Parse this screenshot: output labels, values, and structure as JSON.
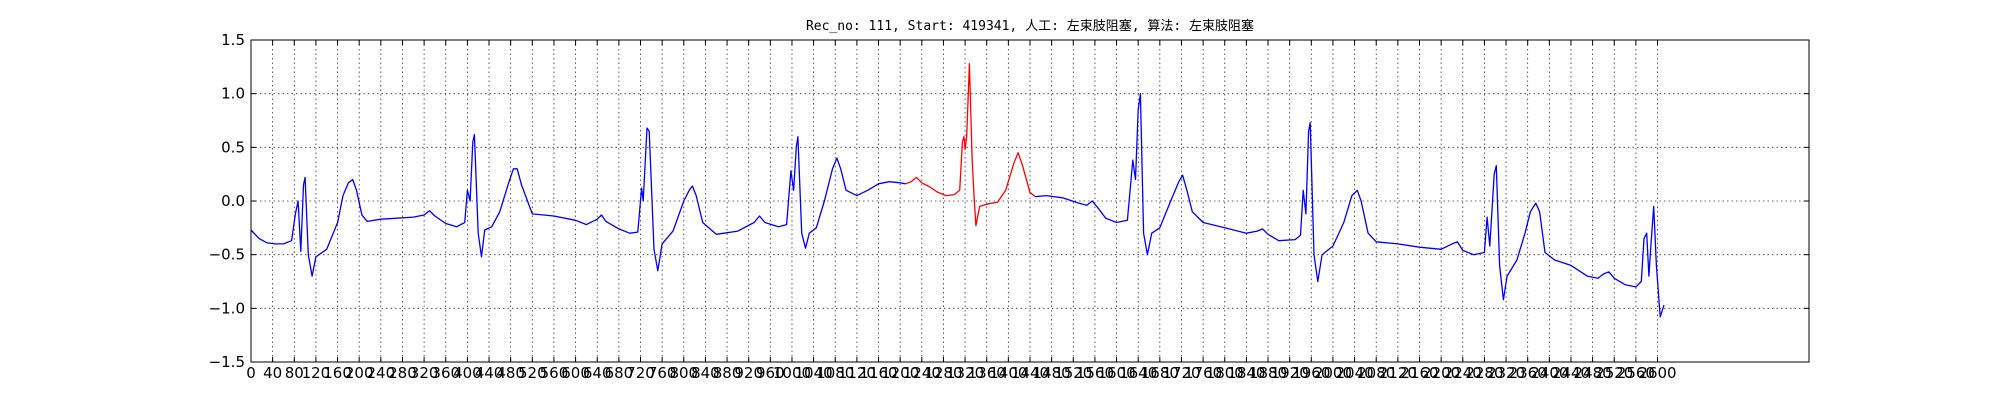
{
  "chart_data": {
    "type": "line",
    "title": "Rec_no: 111, Start: 419341, 人工: 左束肢阻塞, 算法: 左束肢阻塞",
    "xlabel": "",
    "ylabel": "",
    "xlim": [
      0,
      2880
    ],
    "ylim": [
      -1.5,
      1.5
    ],
    "grid": true,
    "yticks": [
      -1.5,
      -1.0,
      -0.5,
      0.0,
      0.5,
      1.0,
      1.5
    ],
    "ytick_labels": [
      "−1.5",
      "−1.0",
      "−0.5",
      "0.0",
      "0.5",
      "1.0",
      "1.5"
    ],
    "xticks": [
      0,
      40,
      80,
      120,
      160,
      200,
      240,
      280,
      320,
      360,
      400,
      440,
      480,
      520,
      560,
      600,
      640,
      680,
      720,
      760,
      800,
      840,
      880,
      920,
      960,
      1000,
      1040,
      1080,
      1120,
      1160,
      1200,
      1240,
      1280,
      1320,
      1360,
      1400,
      1440,
      1480,
      1520,
      1560,
      1600,
      1640,
      1680,
      1720,
      1760,
      1800,
      1840,
      1880,
      1920,
      1960,
      2000,
      2040,
      2080,
      2120,
      2160,
      2200,
      2240,
      2280,
      2320,
      2360,
      2400,
      2440,
      2480,
      2520,
      2560,
      2600
    ],
    "series": [
      {
        "color": "#0000ff",
        "segment": "before",
        "points": [
          [
            0,
            -0.27
          ],
          [
            15,
            -0.35
          ],
          [
            30,
            -0.39
          ],
          [
            45,
            -0.4
          ],
          [
            60,
            -0.4
          ],
          [
            75,
            -0.37
          ],
          [
            82,
            -0.12
          ],
          [
            87,
            0.0
          ],
          [
            92,
            -0.47
          ],
          [
            97,
            0.15
          ],
          [
            100,
            0.22
          ],
          [
            106,
            -0.5
          ],
          [
            113,
            -0.7
          ],
          [
            120,
            -0.52
          ],
          [
            140,
            -0.45
          ],
          [
            160,
            -0.2
          ],
          [
            170,
            0.05
          ],
          [
            180,
            0.17
          ],
          [
            188,
            0.2
          ],
          [
            195,
            0.1
          ],
          [
            205,
            -0.13
          ],
          [
            215,
            -0.19
          ],
          [
            240,
            -0.17
          ],
          [
            270,
            -0.16
          ],
          [
            300,
            -0.15
          ],
          [
            320,
            -0.13
          ],
          [
            330,
            -0.09
          ],
          [
            340,
            -0.14
          ],
          [
            360,
            -0.21
          ],
          [
            380,
            -0.24
          ],
          [
            395,
            -0.2
          ],
          [
            400,
            0.1
          ],
          [
            405,
            0.0
          ],
          [
            410,
            0.55
          ],
          [
            413,
            0.62
          ],
          [
            420,
            -0.3
          ],
          [
            426,
            -0.52
          ],
          [
            432,
            -0.27
          ],
          [
            445,
            -0.24
          ],
          [
            460,
            -0.1
          ],
          [
            475,
            0.15
          ],
          [
            485,
            0.3
          ],
          [
            492,
            0.3
          ],
          [
            500,
            0.15
          ],
          [
            520,
            -0.12
          ],
          [
            560,
            -0.14
          ],
          [
            600,
            -0.18
          ],
          [
            620,
            -0.22
          ],
          [
            640,
            -0.17
          ],
          [
            648,
            -0.13
          ],
          [
            656,
            -0.19
          ],
          [
            680,
            -0.26
          ],
          [
            700,
            -0.3
          ],
          [
            715,
            -0.29
          ],
          [
            722,
            0.12
          ],
          [
            725,
            0.0
          ],
          [
            732,
            0.68
          ],
          [
            736,
            0.65
          ],
          [
            745,
            -0.45
          ],
          [
            752,
            -0.65
          ],
          [
            760,
            -0.4
          ],
          [
            780,
            -0.28
          ],
          [
            800,
            0.0
          ],
          [
            810,
            0.1
          ],
          [
            816,
            0.14
          ],
          [
            823,
            0.05
          ],
          [
            835,
            -0.2
          ],
          [
            860,
            -0.31
          ],
          [
            900,
            -0.28
          ],
          [
            930,
            -0.2
          ],
          [
            940,
            -0.14
          ],
          [
            950,
            -0.2
          ],
          [
            975,
            -0.24
          ],
          [
            990,
            -0.22
          ],
          [
            998,
            0.28
          ],
          [
            1003,
            0.1
          ],
          [
            1008,
            0.5
          ],
          [
            1011,
            0.6
          ],
          [
            1018,
            -0.3
          ],
          [
            1025,
            -0.44
          ],
          [
            1032,
            -0.3
          ],
          [
            1045,
            -0.25
          ],
          [
            1060,
            0.0
          ],
          [
            1075,
            0.3
          ],
          [
            1083,
            0.4
          ],
          [
            1090,
            0.3
          ],
          [
            1100,
            0.1
          ],
          [
            1120,
            0.05
          ],
          [
            1140,
            0.1
          ],
          [
            1160,
            0.16
          ],
          [
            1180,
            0.18
          ],
          [
            1200,
            0.17
          ],
          [
            1210,
            0.16
          ]
        ]
      },
      {
        "color": "#ff0000",
        "segment": "highlighted",
        "points": [
          [
            1210,
            0.16
          ],
          [
            1220,
            0.18
          ],
          [
            1230,
            0.22
          ],
          [
            1240,
            0.17
          ],
          [
            1255,
            0.13
          ],
          [
            1270,
            0.08
          ],
          [
            1285,
            0.05
          ],
          [
            1300,
            0.06
          ],
          [
            1310,
            0.1
          ],
          [
            1315,
            0.55
          ],
          [
            1318,
            0.6
          ],
          [
            1320,
            0.48
          ],
          [
            1323,
            0.6
          ],
          [
            1328,
            1.28
          ],
          [
            1333,
            0.4
          ],
          [
            1337,
            0.0
          ],
          [
            1340,
            -0.23
          ],
          [
            1343,
            -0.15
          ],
          [
            1347,
            -0.05
          ],
          [
            1360,
            -0.03
          ],
          [
            1380,
            -0.01
          ],
          [
            1395,
            0.1
          ],
          [
            1410,
            0.35
          ],
          [
            1418,
            0.45
          ],
          [
            1425,
            0.35
          ],
          [
            1440,
            0.08
          ],
          [
            1450,
            0.04
          ]
        ]
      },
      {
        "color": "#0000ff",
        "segment": "after",
        "points": [
          [
            1450,
            0.04
          ],
          [
            1470,
            0.05
          ],
          [
            1500,
            0.03
          ],
          [
            1530,
            -0.02
          ],
          [
            1545,
            -0.04
          ],
          [
            1555,
            0.0
          ],
          [
            1565,
            -0.06
          ],
          [
            1580,
            -0.16
          ],
          [
            1600,
            -0.2
          ],
          [
            1620,
            -0.18
          ],
          [
            1630,
            0.38
          ],
          [
            1635,
            0.2
          ],
          [
            1640,
            0.85
          ],
          [
            1644,
            1.0
          ],
          [
            1650,
            -0.3
          ],
          [
            1657,
            -0.5
          ],
          [
            1665,
            -0.3
          ],
          [
            1680,
            -0.25
          ],
          [
            1700,
            0.0
          ],
          [
            1715,
            0.18
          ],
          [
            1722,
            0.24
          ],
          [
            1730,
            0.1
          ],
          [
            1740,
            -0.1
          ],
          [
            1760,
            -0.2
          ],
          [
            1800,
            -0.25
          ],
          [
            1840,
            -0.3
          ],
          [
            1860,
            -0.28
          ],
          [
            1870,
            -0.26
          ],
          [
            1880,
            -0.31
          ],
          [
            1900,
            -0.37
          ],
          [
            1930,
            -0.36
          ],
          [
            1940,
            -0.32
          ],
          [
            1945,
            0.1
          ],
          [
            1950,
            -0.12
          ],
          [
            1955,
            0.65
          ],
          [
            1958,
            0.73
          ],
          [
            1965,
            -0.5
          ],
          [
            1972,
            -0.75
          ],
          [
            1980,
            -0.5
          ],
          [
            2000,
            -0.42
          ],
          [
            2020,
            -0.2
          ],
          [
            2035,
            0.05
          ],
          [
            2045,
            0.1
          ],
          [
            2052,
            0.0
          ],
          [
            2065,
            -0.3
          ],
          [
            2080,
            -0.38
          ],
          [
            2120,
            -0.4
          ],
          [
            2160,
            -0.43
          ],
          [
            2200,
            -0.45
          ],
          [
            2220,
            -0.4
          ],
          [
            2230,
            -0.38
          ],
          [
            2240,
            -0.46
          ],
          [
            2260,
            -0.5
          ],
          [
            2280,
            -0.48
          ],
          [
            2285,
            -0.15
          ],
          [
            2290,
            -0.42
          ],
          [
            2298,
            0.25
          ],
          [
            2302,
            0.33
          ],
          [
            2308,
            -0.6
          ],
          [
            2315,
            -0.92
          ],
          [
            2322,
            -0.7
          ],
          [
            2340,
            -0.55
          ],
          [
            2355,
            -0.3
          ],
          [
            2365,
            -0.1
          ],
          [
            2375,
            -0.02
          ],
          [
            2382,
            -0.1
          ],
          [
            2392,
            -0.48
          ],
          [
            2410,
            -0.55
          ],
          [
            2440,
            -0.6
          ],
          [
            2470,
            -0.7
          ],
          [
            2490,
            -0.72
          ],
          [
            2500,
            -0.68
          ],
          [
            2510,
            -0.66
          ],
          [
            2520,
            -0.72
          ],
          [
            2540,
            -0.78
          ],
          [
            2560,
            -0.8
          ],
          [
            2570,
            -0.75
          ],
          [
            2575,
            -0.35
          ],
          [
            2580,
            -0.3
          ],
          [
            2584,
            -0.7
          ],
          [
            2588,
            -0.4
          ],
          [
            2593,
            -0.05
          ],
          [
            2598,
            -0.6
          ],
          [
            2605,
            -1.08
          ],
          [
            2612,
            -0.97
          ]
        ]
      }
    ]
  }
}
